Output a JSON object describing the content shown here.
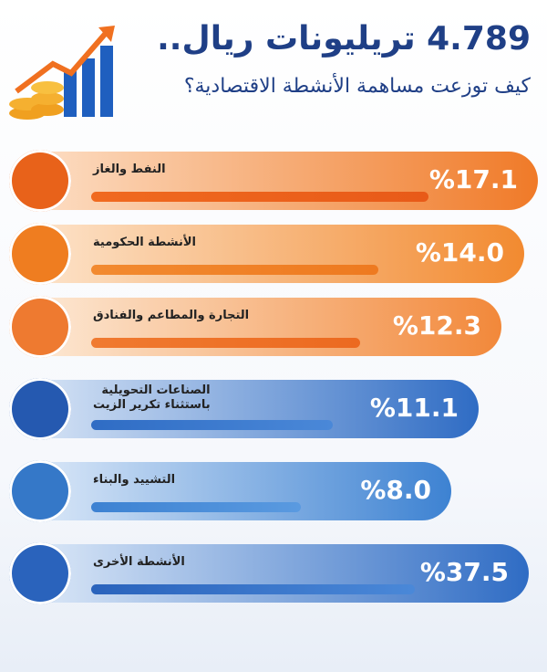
{
  "header": {
    "title": "4.789 تريليونات ريال..",
    "subtitle": "كيف توزعت مساهمة الأنشطة الاقتصادية؟"
  },
  "items": [
    {
      "label_lines": [
        "النفط والغاز"
      ],
      "value": "%17.1"
    },
    {
      "label_lines": [
        "الأنشطة الحكومية"
      ],
      "value": "%14.0"
    },
    {
      "label_lines": [
        "التجارة والمطاعم والفنادق"
      ],
      "value": "%12.3"
    },
    {
      "label_lines": [
        "الصناعات التحويلية",
        "باستثناء تكرير الزيت"
      ],
      "value": "%11.1"
    },
    {
      "label_lines": [
        "التشييد والبناء"
      ],
      "value": "%8.0"
    },
    {
      "label_lines": [
        "الأنشطة الأخرى"
      ],
      "value": "%37.5"
    }
  ]
}
